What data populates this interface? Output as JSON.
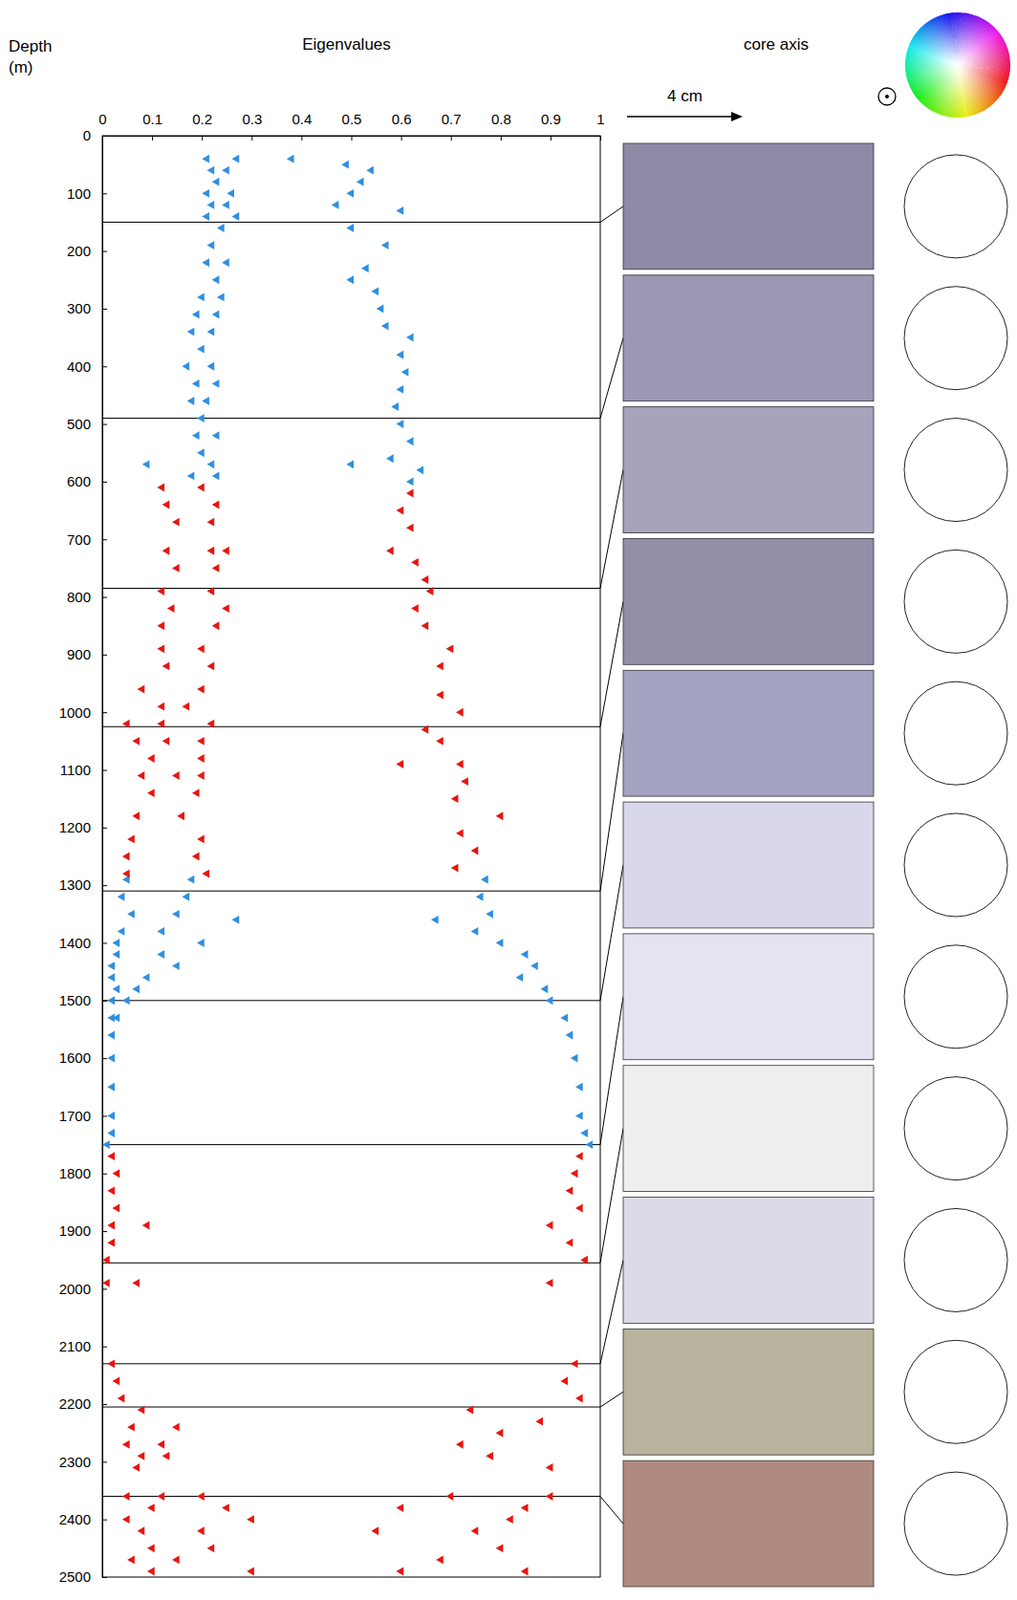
{
  "chart_data": {
    "type": "scatter",
    "x_label": "Eigenvalues",
    "y_label": "Depth (m)",
    "core_axis_label": "core axis",
    "scale_bar_label": "4 cm",
    "xlim": [
      0,
      1
    ],
    "ylim": [
      0,
      2500
    ],
    "xticks": [
      0,
      0.1,
      0.2,
      0.3,
      0.4,
      0.5,
      0.6,
      0.7,
      0.8,
      0.9,
      1
    ],
    "yticks": [
      0,
      100,
      200,
      300,
      400,
      500,
      600,
      700,
      800,
      900,
      1000,
      1100,
      1200,
      1300,
      1400,
      1500,
      1600,
      1700,
      1800,
      1900,
      2000,
      2100,
      2200,
      2300,
      2400,
      2500
    ],
    "marker": "triangle",
    "section_depths": [
      150,
      490,
      785,
      1025,
      1310,
      1500,
      1750,
      1955,
      2130,
      2205,
      2360
    ],
    "series": [
      {
        "color": "#2f8fe0",
        "y": [
          40,
          40,
          60,
          60,
          80,
          100,
          100,
          120,
          120,
          140,
          140,
          160,
          190,
          220,
          220,
          250,
          280,
          280,
          310,
          310,
          340,
          340,
          370,
          400,
          400,
          430,
          430,
          460,
          460,
          490,
          520,
          520,
          550,
          570,
          570,
          590,
          590,
          40,
          50,
          60,
          80,
          100,
          120,
          130,
          160,
          190,
          230,
          250,
          270,
          300,
          330,
          350,
          380,
          410,
          440,
          470,
          500,
          530,
          560,
          570,
          580,
          600,
          1290,
          1290,
          1320,
          1320,
          1350,
          1350,
          1360,
          1380,
          1380,
          1400,
          1400,
          1420,
          1420,
          1440,
          1440,
          1460,
          1460,
          1480,
          1480,
          1500,
          1500,
          1530,
          1530,
          1560,
          1600,
          1650,
          1700,
          1730,
          1750,
          1290,
          1320,
          1350,
          1360,
          1380,
          1400,
          1420,
          1440,
          1460,
          1480,
          1500,
          1530,
          1560,
          1600,
          1650,
          1700,
          1730,
          1750
        ],
        "x": [
          0.21,
          0.27,
          0.22,
          0.25,
          0.23,
          0.21,
          0.26,
          0.22,
          0.25,
          0.21,
          0.27,
          0.24,
          0.22,
          0.21,
          0.25,
          0.23,
          0.2,
          0.24,
          0.19,
          0.23,
          0.18,
          0.22,
          0.2,
          0.17,
          0.22,
          0.19,
          0.23,
          0.18,
          0.21,
          0.2,
          0.19,
          0.23,
          0.2,
          0.09,
          0.22,
          0.18,
          0.23,
          0.38,
          0.49,
          0.54,
          0.52,
          0.5,
          0.47,
          0.6,
          0.5,
          0.57,
          0.53,
          0.5,
          0.55,
          0.56,
          0.57,
          0.62,
          0.6,
          0.61,
          0.6,
          0.59,
          0.6,
          0.62,
          0.58,
          0.5,
          0.64,
          0.62,
          0.05,
          0.18,
          0.04,
          0.17,
          0.06,
          0.15,
          0.27,
          0.04,
          0.12,
          0.03,
          0.2,
          0.03,
          0.12,
          0.02,
          0.15,
          0.02,
          0.09,
          0.03,
          0.07,
          0.02,
          0.05,
          0.02,
          0.03,
          0.02,
          0.02,
          0.02,
          0.02,
          0.02,
          0.01,
          0.77,
          0.76,
          0.78,
          0.67,
          0.75,
          0.8,
          0.85,
          0.87,
          0.84,
          0.89,
          0.9,
          0.93,
          0.94,
          0.95,
          0.96,
          0.96,
          0.97,
          0.98
        ]
      },
      {
        "color": "#e8150f",
        "y": [
          610,
          610,
          640,
          640,
          670,
          670,
          720,
          720,
          720,
          750,
          750,
          790,
          790,
          820,
          820,
          850,
          850,
          890,
          890,
          920,
          920,
          960,
          960,
          990,
          990,
          1020,
          1020,
          1020,
          1050,
          1050,
          1050,
          1080,
          1080,
          1110,
          1110,
          1110,
          1140,
          1140,
          1180,
          1180,
          1220,
          1220,
          1250,
          1250,
          1280,
          1280,
          620,
          650,
          680,
          720,
          740,
          770,
          790,
          820,
          850,
          890,
          920,
          970,
          1000,
          1030,
          1050,
          1090,
          1090,
          1120,
          1150,
          1180,
          1210,
          1240,
          1270,
          1770,
          1800,
          1830,
          1860,
          1890,
          1890,
          1920,
          1950,
          1990,
          1990,
          1770,
          1800,
          1830,
          1860,
          1890,
          1920,
          1950,
          1990,
          2130,
          2160,
          2190,
          2210,
          2240,
          2240,
          2270,
          2270,
          2290,
          2290,
          2310,
          2360,
          2360,
          2360,
          2380,
          2380,
          2400,
          2400,
          2420,
          2420,
          2450,
          2450,
          2470,
          2470,
          2490,
          2490,
          2130,
          2160,
          2190,
          2210,
          2230,
          2250,
          2270,
          2290,
          2310,
          2360,
          2360,
          2380,
          2380,
          2400,
          2420,
          2420,
          2450,
          2470,
          2490,
          2490
        ],
        "x": [
          0.12,
          0.2,
          0.13,
          0.23,
          0.15,
          0.22,
          0.13,
          0.22,
          0.25,
          0.15,
          0.23,
          0.12,
          0.22,
          0.14,
          0.25,
          0.12,
          0.23,
          0.12,
          0.2,
          0.13,
          0.22,
          0.08,
          0.2,
          0.12,
          0.17,
          0.05,
          0.12,
          0.22,
          0.07,
          0.13,
          0.2,
          0.1,
          0.2,
          0.08,
          0.15,
          0.2,
          0.1,
          0.19,
          0.07,
          0.16,
          0.06,
          0.2,
          0.05,
          0.19,
          0.05,
          0.21,
          0.62,
          0.6,
          0.62,
          0.58,
          0.63,
          0.65,
          0.66,
          0.63,
          0.65,
          0.7,
          0.68,
          0.68,
          0.72,
          0.65,
          0.68,
          0.6,
          0.72,
          0.73,
          0.71,
          0.8,
          0.72,
          0.75,
          0.71,
          0.02,
          0.03,
          0.02,
          0.03,
          0.02,
          0.09,
          0.02,
          0.01,
          0.01,
          0.07,
          0.96,
          0.95,
          0.94,
          0.96,
          0.9,
          0.94,
          0.97,
          0.9,
          0.02,
          0.03,
          0.04,
          0.08,
          0.06,
          0.15,
          0.05,
          0.12,
          0.08,
          0.13,
          0.07,
          0.05,
          0.12,
          0.2,
          0.1,
          0.25,
          0.05,
          0.3,
          0.08,
          0.2,
          0.1,
          0.22,
          0.06,
          0.15,
          0.1,
          0.3,
          0.95,
          0.93,
          0.96,
          0.74,
          0.88,
          0.8,
          0.72,
          0.78,
          0.9,
          0.9,
          0.7,
          0.6,
          0.85,
          0.82,
          0.55,
          0.75,
          0.8,
          0.68,
          0.6,
          0.85
        ]
      }
    ]
  }
}
